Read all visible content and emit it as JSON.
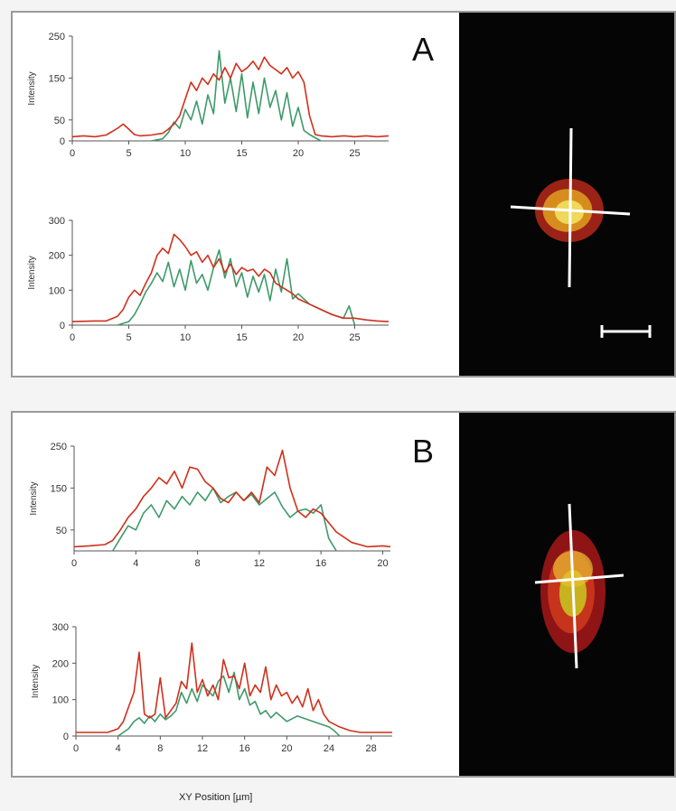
{
  "panels": [
    {
      "label": "A"
    },
    {
      "label": "B"
    }
  ],
  "x_axis_title": "XY Position [µm]",
  "colors": {
    "red_channel": "#d0301c",
    "green_channel": "#3d9a6a",
    "axis": "#555555",
    "micro_bg": "#050505"
  },
  "chart_data": [
    {
      "type": "line",
      "panel": "A",
      "ylabel": "Intensity",
      "xlim": [
        0,
        28
      ],
      "ylim": [
        0,
        250
      ],
      "xticks": [
        0,
        5,
        10,
        15,
        20,
        25
      ],
      "yticks": [
        0,
        50,
        150,
        250
      ],
      "series": [
        {
          "color": "red",
          "x": [
            0,
            1,
            2,
            3,
            4,
            4.5,
            5,
            5.5,
            6,
            7,
            8,
            8.5,
            9,
            9.5,
            10,
            10.5,
            11,
            11.5,
            12,
            12.5,
            13,
            13.5,
            14,
            14.5,
            15,
            15.5,
            16,
            16.5,
            17,
            17.5,
            18,
            18.5,
            19,
            19.5,
            20,
            20.5,
            21,
            21.5,
            22,
            23,
            24,
            25,
            26,
            27,
            28
          ],
          "y": [
            10,
            12,
            10,
            14,
            30,
            40,
            28,
            15,
            12,
            14,
            18,
            28,
            40,
            60,
            100,
            140,
            120,
            150,
            135,
            160,
            145,
            175,
            150,
            185,
            165,
            175,
            190,
            170,
            200,
            180,
            170,
            160,
            175,
            150,
            165,
            140,
            60,
            15,
            12,
            10,
            12,
            10,
            12,
            10,
            12
          ]
        },
        {
          "color": "green",
          "x": [
            7,
            8,
            8.5,
            9,
            9.5,
            10,
            10.5,
            11,
            11.5,
            12,
            12.5,
            13,
            13.5,
            14,
            14.5,
            15,
            15.5,
            16,
            16.5,
            17,
            17.5,
            18,
            18.5,
            19,
            19.5,
            20,
            20.5,
            21,
            22
          ],
          "y": [
            0,
            5,
            20,
            45,
            30,
            75,
            50,
            95,
            40,
            110,
            65,
            215,
            90,
            150,
            70,
            160,
            55,
            140,
            65,
            150,
            80,
            120,
            50,
            115,
            35,
            80,
            25,
            15,
            0
          ]
        }
      ]
    },
    {
      "type": "line",
      "panel": "A",
      "ylabel": "Intensity",
      "xlim": [
        0,
        28
      ],
      "ylim": [
        0,
        300
      ],
      "xticks": [
        0,
        5,
        10,
        15,
        20,
        25
      ],
      "yticks": [
        0,
        100,
        200,
        300
      ],
      "series": [
        {
          "color": "red",
          "x": [
            0,
            2,
            3,
            4,
            4.5,
            5,
            5.5,
            6,
            6.5,
            7,
            7.5,
            8,
            8.5,
            9,
            9.5,
            10,
            10.5,
            11,
            11.5,
            12,
            12.5,
            13,
            13.5,
            14,
            14.5,
            15,
            15.5,
            16,
            16.5,
            17,
            17.5,
            18,
            18.5,
            19,
            19.5,
            20,
            21,
            22,
            23,
            24,
            25,
            26,
            27,
            28
          ],
          "y": [
            10,
            12,
            12,
            25,
            45,
            80,
            100,
            85,
            120,
            150,
            200,
            220,
            205,
            260,
            245,
            225,
            200,
            210,
            180,
            200,
            165,
            190,
            150,
            175,
            145,
            165,
            155,
            160,
            140,
            160,
            150,
            120,
            110,
            100,
            90,
            75,
            60,
            45,
            30,
            20,
            20,
            15,
            12,
            10
          ]
        },
        {
          "color": "green",
          "x": [
            4,
            5,
            5.5,
            6,
            6.5,
            7,
            7.5,
            8,
            8.5,
            9,
            9.5,
            10,
            10.5,
            11,
            11.5,
            12,
            12.5,
            13,
            13.5,
            14,
            14.5,
            15,
            15.5,
            16,
            16.5,
            17,
            17.5,
            18,
            18.5,
            19,
            19.5,
            20,
            21,
            22,
            23,
            24,
            24.5,
            25
          ],
          "y": [
            0,
            10,
            30,
            60,
            95,
            120,
            150,
            125,
            180,
            110,
            160,
            100,
            185,
            120,
            145,
            100,
            165,
            215,
            135,
            190,
            110,
            150,
            80,
            140,
            95,
            145,
            70,
            160,
            95,
            190,
            75,
            90,
            60,
            45,
            30,
            20,
            55,
            0
          ]
        }
      ]
    },
    {
      "type": "line",
      "panel": "B",
      "ylabel": "Intensity",
      "xlim": [
        0,
        20.5
      ],
      "ylim": [
        0,
        250
      ],
      "xticks": [
        0,
        4,
        8,
        12,
        16,
        20
      ],
      "yticks": [
        50,
        150,
        250
      ],
      "series": [
        {
          "color": "red",
          "x": [
            0,
            1,
            2,
            2.5,
            3,
            3.5,
            4,
            4.5,
            5,
            5.5,
            6,
            6.5,
            7,
            7.5,
            8,
            8.5,
            9,
            9.5,
            10,
            10.5,
            11,
            11.5,
            12,
            12.5,
            13,
            13.5,
            14,
            14.5,
            15,
            15.5,
            16,
            17,
            18,
            19,
            20,
            20.5
          ],
          "y": [
            10,
            12,
            15,
            25,
            50,
            80,
            100,
            130,
            150,
            175,
            160,
            190,
            150,
            200,
            195,
            165,
            150,
            125,
            115,
            140,
            120,
            140,
            115,
            200,
            180,
            240,
            150,
            95,
            80,
            100,
            90,
            45,
            20,
            10,
            12,
            10
          ]
        },
        {
          "color": "green",
          "x": [
            2.5,
            3,
            3.5,
            4,
            4.5,
            5,
            5.5,
            6,
            6.5,
            7,
            7.5,
            8,
            8.5,
            9,
            9.5,
            10,
            10.5,
            11,
            11.5,
            12,
            12.5,
            13,
            13.5,
            14,
            14.5,
            15,
            15.5,
            16,
            16.5,
            17
          ],
          "y": [
            0,
            30,
            60,
            50,
            90,
            110,
            80,
            120,
            100,
            130,
            110,
            140,
            120,
            150,
            115,
            130,
            140,
            120,
            135,
            110,
            125,
            140,
            105,
            80,
            95,
            100,
            90,
            110,
            30,
            0
          ]
        }
      ]
    },
    {
      "type": "line",
      "panel": "B",
      "ylabel": "Intensity",
      "xlim": [
        0,
        30
      ],
      "ylim": [
        0,
        300
      ],
      "xticks": [
        0,
        4,
        8,
        12,
        16,
        20,
        24,
        28
      ],
      "yticks": [
        0,
        100,
        200,
        300
      ],
      "series": [
        {
          "color": "red",
          "x": [
            0,
            2,
            3,
            4,
            4.5,
            5,
            5.5,
            6,
            6.5,
            7,
            7.5,
            8,
            8.5,
            9,
            9.5,
            10,
            10.5,
            11,
            11.5,
            12,
            12.5,
            13,
            13.5,
            14,
            14.5,
            15,
            15.5,
            16,
            16.5,
            17,
            17.5,
            18,
            18.5,
            19,
            19.5,
            20,
            20.5,
            21,
            21.5,
            22,
            22.5,
            23,
            23.5,
            24,
            25,
            26,
            27,
            30
          ],
          "y": [
            10,
            10,
            10,
            20,
            40,
            80,
            120,
            230,
            60,
            50,
            60,
            160,
            50,
            70,
            90,
            150,
            130,
            255,
            120,
            155,
            110,
            140,
            100,
            210,
            160,
            165,
            130,
            200,
            110,
            140,
            120,
            190,
            100,
            140,
            110,
            120,
            90,
            110,
            80,
            130,
            70,
            100,
            60,
            40,
            25,
            15,
            10,
            10
          ]
        },
        {
          "color": "green",
          "x": [
            4,
            5,
            5.5,
            6,
            6.5,
            7,
            7.5,
            8,
            8.5,
            9,
            9.5,
            10,
            10.5,
            11,
            11.5,
            12,
            12.5,
            13,
            13.5,
            14,
            14.5,
            15,
            15.5,
            16,
            16.5,
            17,
            17.5,
            18,
            18.5,
            19,
            20,
            21,
            22,
            23,
            24,
            24.5,
            25
          ],
          "y": [
            0,
            20,
            40,
            50,
            35,
            55,
            40,
            60,
            45,
            55,
            70,
            120,
            90,
            130,
            95,
            140,
            125,
            110,
            150,
            165,
            120,
            175,
            100,
            130,
            85,
            95,
            60,
            70,
            50,
            65,
            40,
            55,
            45,
            35,
            25,
            15,
            0
          ]
        }
      ]
    }
  ]
}
